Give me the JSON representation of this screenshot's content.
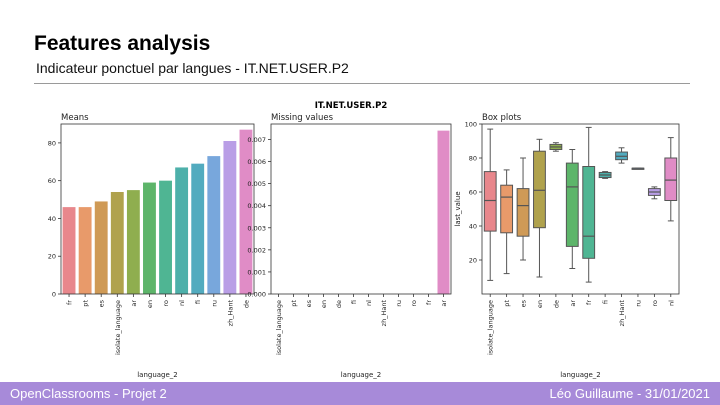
{
  "slide": {
    "title": "Features analysis",
    "subtitle": "Indicateur ponctuel par langues - IT.NET.USER.P2"
  },
  "footer": {
    "left": "OpenClassrooms - Projet 2",
    "right": "Léo Guillaume - 31/01/2021"
  },
  "colors": {
    "footer_bg": "#a78ad9",
    "accent": "#000000"
  },
  "figure_title": "IT.NET.USER.P2",
  "chart_data": [
    {
      "type": "bar",
      "title": "Means",
      "xlabel": "language_2",
      "ylabel": "",
      "ylim": [
        0,
        90
      ],
      "yticks": [
        "0",
        "20",
        "40",
        "60",
        "80"
      ],
      "categories": [
        "fr",
        "pt",
        "es",
        "isolate_language",
        "ar",
        "en",
        "ro",
        "nl",
        "fi",
        "ru",
        "zh_Hant",
        "de"
      ],
      "values": [
        46,
        46,
        49,
        54,
        55,
        59,
        60,
        67,
        69,
        73,
        81,
        87
      ],
      "colors": [
        "#e8878c",
        "#e89a6a",
        "#cf9a56",
        "#b0a24d",
        "#8fae4f",
        "#5db56a",
        "#4fb593",
        "#4db0aa",
        "#52abbf",
        "#78a7dc",
        "#b99ee6",
        "#e08cc6"
      ]
    },
    {
      "type": "bar",
      "title": "Missing values",
      "xlabel": "language_2",
      "ylabel": "",
      "ylim": [
        0,
        0.0077
      ],
      "yticks": [
        "0.000",
        "0.001",
        "0.002",
        "0.003",
        "0.004",
        "0.005",
        "0.006",
        "0.007"
      ],
      "categories": [
        "isolate_language",
        "pt",
        "es",
        "en",
        "de",
        "fi",
        "nl",
        "zh_Hant",
        "ru",
        "ro",
        "fr",
        "ar"
      ],
      "values": [
        0,
        0,
        0,
        0,
        0,
        0,
        0,
        0,
        0,
        0,
        0,
        0.0074
      ],
      "colors": [
        "#e8878c",
        "#e89a6a",
        "#cf9a56",
        "#b0a24d",
        "#8fae4f",
        "#5db56a",
        "#4fb593",
        "#4db0aa",
        "#52abbf",
        "#78a7dc",
        "#b99ee6",
        "#e08cc6"
      ]
    },
    {
      "type": "box",
      "title": "Box plots",
      "xlabel": "language_2",
      "ylabel": "last_value",
      "ylim": [
        0,
        100
      ],
      "yticks": [
        "20",
        "40",
        "60",
        "80",
        "100"
      ],
      "categories": [
        "isolate_language",
        "pt",
        "es",
        "en",
        "de",
        "ar",
        "fr",
        "fi",
        "zh_Hant",
        "ru",
        "ro",
        "nl"
      ],
      "boxes": [
        {
          "min": 8,
          "q1": 37,
          "median": 55,
          "q3": 72,
          "max": 97
        },
        {
          "min": 12,
          "q1": 36,
          "median": 57,
          "q3": 64,
          "max": 73
        },
        {
          "min": 20,
          "q1": 34,
          "median": 52,
          "q3": 62,
          "max": 80
        },
        {
          "min": 10,
          "q1": 39,
          "median": 61,
          "q3": 84,
          "max": 91
        },
        {
          "min": 84,
          "q1": 85,
          "median": 86.5,
          "q3": 88,
          "max": 89
        },
        {
          "min": 15,
          "q1": 28,
          "median": 63,
          "q3": 77,
          "max": 85
        },
        {
          "min": 7,
          "q1": 21,
          "median": 34,
          "q3": 75,
          "max": 98
        },
        {
          "min": 68,
          "q1": 68.5,
          "median": 70,
          "q3": 71.5,
          "max": 72
        },
        {
          "min": 77,
          "q1": 79,
          "median": 81,
          "q3": 83.5,
          "max": 86
        },
        {
          "min": 74,
          "q1": 74,
          "median": 74,
          "q3": 74,
          "max": 74
        },
        {
          "min": 56,
          "q1": 58,
          "median": 60,
          "q3": 62,
          "max": 63
        },
        {
          "min": 43,
          "q1": 55,
          "median": 67,
          "q3": 80,
          "max": 92
        }
      ],
      "colors": [
        "#e8878c",
        "#e89a6a",
        "#cf9a56",
        "#b0a24d",
        "#8fae4f",
        "#5db56a",
        "#4fb593",
        "#4db0aa",
        "#52abbf",
        "#78a7dc",
        "#b99ee6",
        "#e08cc6"
      ]
    }
  ]
}
